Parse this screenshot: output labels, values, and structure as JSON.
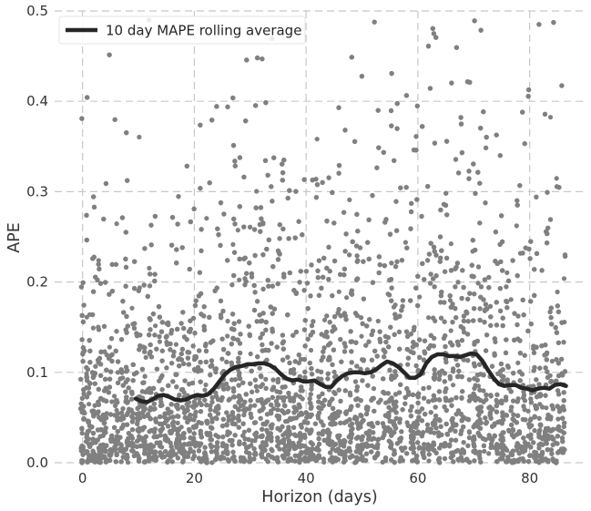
{
  "chart_data": {
    "type": "scatter",
    "xlabel": "Horizon (days)",
    "ylabel": "APE",
    "xlim": [
      -5,
      90
    ],
    "ylim": [
      0,
      0.5
    ],
    "x_ticks": [
      0,
      20,
      40,
      60,
      80
    ],
    "y_ticks": [
      0.0,
      0.1,
      0.2,
      0.3,
      0.4,
      0.5
    ],
    "x_tick_labels": [
      "0",
      "20",
      "40",
      "60",
      "80"
    ],
    "y_tick_labels": [
      "0.0",
      "0.1",
      "0.2",
      "0.3",
      "0.4",
      "0.5"
    ],
    "grid": true,
    "legend_position": "top-left",
    "scatter_color": "#808080",
    "line_color": "#262626",
    "scatter_points": 9000,
    "series": [
      {
        "name": "10 day MAPE rolling average",
        "type": "line",
        "x": [
          9.5,
          10.5,
          11.5,
          12.5,
          13.5,
          14.5,
          15.5,
          16.5,
          17.5,
          18.5,
          19.5,
          20.5,
          21.5,
          22.5,
          23.5,
          24.5,
          25.5,
          26.5,
          27.5,
          28.5,
          29.5,
          30.5,
          31.5,
          32.5,
          33.5,
          34.5,
          35.5,
          36.5,
          37.5,
          38.5,
          39.5,
          40.5,
          41.5,
          42.5,
          43.5,
          44.5,
          45.5,
          46.5,
          47.5,
          48.5,
          49.5,
          50.5,
          51.5,
          52.5,
          53.5,
          54.5,
          55.5,
          56.5,
          57.5,
          58.5,
          59.5,
          60.5,
          61.5,
          62.5,
          63.5,
          64.5,
          65.5,
          66.5,
          67.5,
          68.5,
          69.5,
          70.5,
          71.5,
          72.5,
          73.5,
          74.5,
          75.5,
          76.5,
          77.5,
          78.5,
          79.5,
          80.5,
          81.5,
          82.5,
          83.5,
          84.5,
          85.5,
          86.5
        ],
        "y": [
          0.071,
          0.068,
          0.067,
          0.07,
          0.074,
          0.075,
          0.073,
          0.07,
          0.069,
          0.07,
          0.073,
          0.075,
          0.074,
          0.076,
          0.082,
          0.09,
          0.098,
          0.103,
          0.106,
          0.107,
          0.109,
          0.109,
          0.11,
          0.11,
          0.108,
          0.104,
          0.098,
          0.093,
          0.091,
          0.092,
          0.09,
          0.09,
          0.091,
          0.087,
          0.084,
          0.084,
          0.091,
          0.096,
          0.099,
          0.1,
          0.1,
          0.099,
          0.1,
          0.103,
          0.108,
          0.112,
          0.11,
          0.106,
          0.1,
          0.094,
          0.094,
          0.098,
          0.11,
          0.117,
          0.12,
          0.12,
          0.118,
          0.118,
          0.117,
          0.119,
          0.121,
          0.12,
          0.113,
          0.103,
          0.094,
          0.087,
          0.085,
          0.086,
          0.086,
          0.083,
          0.082,
          0.08,
          0.082,
          0.083,
          0.082,
          0.086,
          0.087,
          0.085
        ]
      }
    ]
  }
}
